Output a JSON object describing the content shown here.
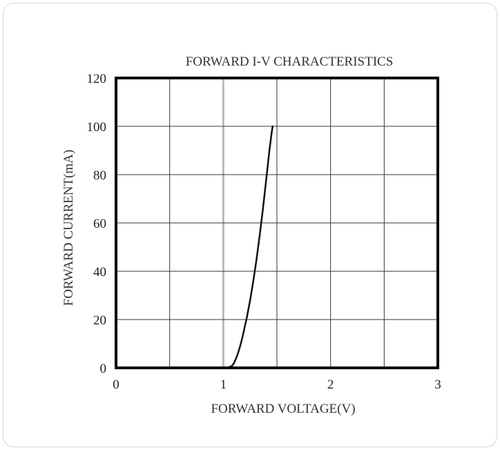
{
  "chart_data": {
    "type": "line",
    "title": "FORWARD I-V CHARACTERISTICS",
    "xlabel": "FORWARD VOLTAGE(V)",
    "ylabel": "FORWARD CURRENT(mA)",
    "xlim": [
      0,
      3
    ],
    "ylim": [
      0,
      120
    ],
    "xticks": [
      0,
      1,
      2,
      3
    ],
    "yticks": [
      0,
      20,
      40,
      60,
      80,
      100,
      120
    ],
    "x_grid": [
      0.5,
      1,
      1.5,
      2,
      2.5
    ],
    "y_grid": [
      20,
      40,
      60,
      80,
      100
    ],
    "highlight_x": 1,
    "grid": true,
    "series": [
      {
        "x": [
          1.0,
          1.05,
          1.08,
          1.1,
          1.12,
          1.14,
          1.16,
          1.18,
          1.2,
          1.22,
          1.25,
          1.28,
          1.31,
          1.34,
          1.37,
          1.4,
          1.43,
          1.45,
          1.46
        ],
        "y": [
          0,
          0.2,
          0.8,
          2.0,
          4.0,
          6.5,
          9.5,
          13,
          17,
          21,
          28,
          36,
          45,
          55,
          66,
          78,
          90,
          97,
          100
        ],
        "color": "#111111"
      }
    ]
  }
}
